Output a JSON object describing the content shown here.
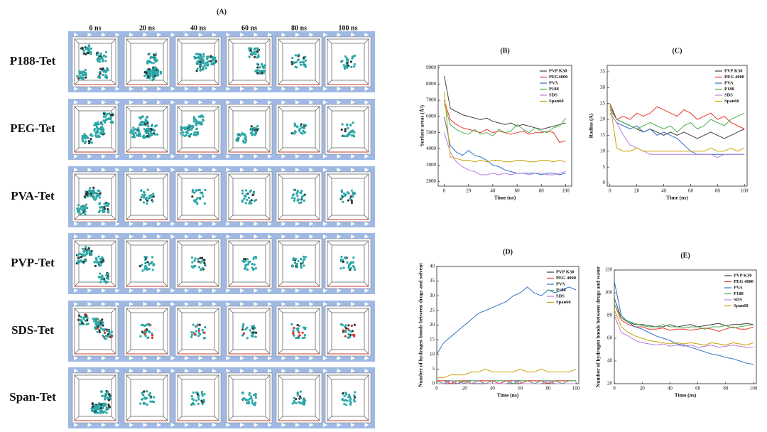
{
  "panel_a": {
    "title": "(A)",
    "columns": [
      "0 ns",
      "20 ns",
      "40 ns",
      "60 ns",
      "80 ns",
      "100 ns"
    ],
    "rows": [
      "P188-Tet",
      "PEG-Tet",
      "PVA-Tet",
      "PVP-Tet",
      "SDS-Tet",
      "Span-Tet"
    ]
  },
  "chart_data": [
    {
      "type": "line",
      "title": "(B)",
      "xlabel": "Time (ns)",
      "ylabel": "Surface areas (Å²)",
      "x": [
        0,
        5,
        10,
        15,
        20,
        25,
        30,
        35,
        40,
        45,
        50,
        55,
        60,
        65,
        70,
        75,
        80,
        85,
        90,
        95,
        100
      ],
      "xlim": [
        -5,
        105
      ],
      "ylim": [
        1700,
        9150
      ],
      "xticks": [
        0,
        20,
        40,
        60,
        80,
        100
      ],
      "yticks": [
        2000,
        3000,
        4000,
        5000,
        6000,
        7000,
        8000,
        9000
      ],
      "legend": "upper right",
      "series": [
        {
          "name": "PVP K30",
          "color": "#404040",
          "values": [
            8500,
            6500,
            6300,
            6100,
            6000,
            5900,
            5800,
            5900,
            5700,
            5600,
            5500,
            5600,
            5400,
            5500,
            5400,
            5300,
            5200,
            5300,
            5400,
            5500,
            5600
          ]
        },
        {
          "name": "PEG4000",
          "color": "#e8382b",
          "values": [
            7000,
            5800,
            5500,
            5300,
            5200,
            5100,
            5000,
            5200,
            5000,
            5100,
            5000,
            4900,
            5000,
            5100,
            4900,
            5000,
            5000,
            5100,
            5000,
            4400,
            4500
          ]
        },
        {
          "name": "PVA",
          "color": "#2f6fc9",
          "values": [
            6000,
            4200,
            3800,
            3600,
            3900,
            3600,
            3500,
            3300,
            3000,
            2900,
            2700,
            2600,
            2500,
            2500,
            2500,
            2500,
            2400,
            2500,
            2500,
            2400,
            2500
          ]
        },
        {
          "name": "P188",
          "color": "#4caf50",
          "values": [
            6800,
            5500,
            5200,
            5000,
            4900,
            5200,
            4900,
            5000,
            4800,
            5200,
            5000,
            5100,
            5500,
            5200,
            5000,
            5300,
            5100,
            5000,
            5300,
            5400,
            5900
          ]
        },
        {
          "name": "SDS",
          "color": "#b57ede",
          "values": [
            5000,
            3800,
            3200,
            2900,
            2700,
            2600,
            2400,
            2400,
            2500,
            2400,
            2500,
            2400,
            2500,
            2500,
            2400,
            2500,
            2500,
            2400,
            2400,
            2500,
            2600
          ]
        },
        {
          "name": "Span60",
          "color": "#c9a000",
          "values": [
            7500,
            3500,
            3400,
            3300,
            3300,
            3200,
            3300,
            3200,
            3300,
            3300,
            3200,
            3200,
            3300,
            3300,
            3200,
            3200,
            3300,
            3300,
            3200,
            3300,
            3200
          ]
        }
      ]
    },
    {
      "type": "line",
      "title": "(C)",
      "xlabel": "Time (ns)",
      "ylabel": "Radius (A)",
      "x": [
        0,
        5,
        10,
        15,
        20,
        25,
        30,
        35,
        40,
        45,
        50,
        55,
        60,
        65,
        70,
        75,
        80,
        85,
        90,
        95,
        100
      ],
      "xlim": [
        -2,
        102
      ],
      "ylim": [
        -1,
        37
      ],
      "xticks": [
        0,
        20,
        40,
        60,
        80,
        100
      ],
      "yticks": [
        0,
        5,
        10,
        15,
        20,
        25,
        30,
        35
      ],
      "legend": "upper right",
      "series": [
        {
          "name": "PVP K30",
          "color": "#404040",
          "values": [
            25,
            20,
            19,
            18,
            17,
            16,
            17,
            16,
            15,
            16,
            15,
            16,
            15,
            14,
            15,
            16,
            15,
            14,
            15,
            16,
            17
          ]
        },
        {
          "name": "PEG 4000",
          "color": "#e8382b",
          "values": [
            24,
            20,
            21,
            20,
            22,
            21,
            22,
            24,
            23,
            22,
            21,
            23,
            22,
            20,
            21,
            22,
            20,
            21,
            19,
            18,
            17
          ]
        },
        {
          "name": "PVA",
          "color": "#2f6fc9",
          "values": [
            22,
            19,
            18,
            17,
            18,
            16,
            17,
            15,
            16,
            15,
            14,
            12,
            10,
            9,
            9,
            9,
            9,
            9,
            9,
            9,
            9
          ]
        },
        {
          "name": "P188",
          "color": "#4caf50",
          "values": [
            23,
            20,
            19,
            18,
            17,
            18,
            19,
            18,
            17,
            18,
            16,
            18,
            19,
            17,
            18,
            20,
            19,
            18,
            20,
            21,
            22
          ]
        },
        {
          "name": "SDS",
          "color": "#b57ede",
          "values": [
            22,
            19,
            15,
            12,
            11,
            10,
            9,
            9,
            9,
            9,
            9,
            9,
            9,
            9,
            9,
            9,
            8,
            9,
            9,
            9,
            9
          ]
        },
        {
          "name": "Span60",
          "color": "#c9a000",
          "values": [
            25,
            11,
            10,
            10,
            11,
            10,
            10,
            10,
            10,
            10,
            10,
            10,
            10,
            10,
            10,
            11,
            10,
            10,
            11,
            10,
            11
          ]
        }
      ]
    },
    {
      "type": "line",
      "title": "(D)",
      "xlabel": "Time (ns)",
      "ylabel": "Number of hydrogen bonds between drugs and solvent",
      "x": [
        0,
        5,
        10,
        15,
        20,
        25,
        30,
        35,
        40,
        45,
        50,
        55,
        60,
        65,
        70,
        75,
        80,
        85,
        90,
        95,
        100
      ],
      "xlim": [
        0,
        102
      ],
      "ylim": [
        0,
        40
      ],
      "xticks": [
        0,
        20,
        40,
        60,
        80,
        100
      ],
      "yticks": [
        0,
        5,
        10,
        15,
        20,
        25,
        30,
        35,
        40
      ],
      "legend": "upper right",
      "series": [
        {
          "name": "PVP K30",
          "color": "#404040",
          "values": [
            1,
            1,
            1,
            0,
            1,
            1,
            1,
            1,
            1,
            1,
            1,
            1,
            1,
            1,
            1,
            1,
            1,
            1,
            1,
            1,
            1
          ]
        },
        {
          "name": "PEG 4000",
          "color": "#e8382b",
          "values": [
            1,
            1,
            0,
            1,
            1,
            0,
            1,
            1,
            1,
            0,
            1,
            1,
            0,
            1,
            1,
            1,
            0,
            1,
            1,
            1,
            1
          ]
        },
        {
          "name": "PVA",
          "color": "#2f6fc9",
          "values": [
            10,
            14,
            16,
            18,
            20,
            22,
            24,
            25,
            26,
            27,
            28,
            30,
            31,
            33,
            31,
            30,
            32,
            31,
            32,
            33,
            32
          ]
        },
        {
          "name": "P188",
          "color": "#4caf50",
          "values": [
            1,
            0,
            1,
            1,
            0,
            1,
            1,
            0,
            1,
            1,
            1,
            0,
            1,
            1,
            0,
            1,
            1,
            1,
            0,
            1,
            1
          ]
        },
        {
          "name": "SDS",
          "color": "#b57ede",
          "values": [
            0,
            0,
            1,
            0,
            0,
            0,
            1,
            0,
            0,
            0,
            0,
            1,
            0,
            0,
            0,
            0,
            1,
            0,
            0,
            0,
            0
          ]
        },
        {
          "name": "Span60",
          "color": "#c9a000",
          "values": [
            2,
            2,
            3,
            3,
            3,
            4,
            4,
            5,
            4,
            4,
            4,
            4,
            5,
            4,
            4,
            5,
            4,
            4,
            4,
            4,
            5
          ]
        }
      ]
    },
    {
      "type": "line",
      "title": "(E)",
      "xlabel": "Time (ns)",
      "ylabel": "Number of hydrogen bonds between drugs and water",
      "x": [
        0,
        5,
        10,
        15,
        20,
        25,
        30,
        35,
        40,
        45,
        50,
        55,
        60,
        65,
        70,
        75,
        80,
        85,
        90,
        95,
        100
      ],
      "xlim": [
        0,
        102
      ],
      "ylim": [
        20,
        120
      ],
      "xticks": [
        0,
        20,
        40,
        60,
        80,
        100
      ],
      "yticks": [
        20,
        40,
        60,
        80,
        100,
        120
      ],
      "legend": "upper right",
      "series": [
        {
          "name": "PVP K30",
          "color": "#404040",
          "values": [
            95,
            78,
            74,
            72,
            72,
            71,
            70,
            70,
            72,
            70,
            71,
            72,
            70,
            71,
            72,
            73,
            71,
            72,
            72,
            73,
            72
          ]
        },
        {
          "name": "PEG 4000",
          "color": "#e8382b",
          "values": [
            90,
            76,
            72,
            70,
            70,
            68,
            68,
            69,
            67,
            68,
            68,
            67,
            68,
            69,
            68,
            66,
            68,
            70,
            68,
            68,
            70
          ]
        },
        {
          "name": "PVA",
          "color": "#2f6fc9",
          "values": [
            110,
            80,
            74,
            70,
            68,
            65,
            62,
            60,
            58,
            55,
            54,
            52,
            50,
            48,
            46,
            45,
            43,
            42,
            40,
            38,
            37
          ]
        },
        {
          "name": "P188",
          "color": "#4caf50",
          "values": [
            90,
            78,
            75,
            73,
            71,
            70,
            70,
            72,
            70,
            70,
            69,
            70,
            70,
            68,
            70,
            70,
            71,
            69,
            70,
            71,
            72
          ]
        },
        {
          "name": "SDS",
          "color": "#b57ede",
          "values": [
            80,
            65,
            62,
            58,
            56,
            55,
            54,
            55,
            53,
            54,
            53,
            54,
            52,
            53,
            54,
            52,
            53,
            54,
            53,
            52,
            52
          ]
        },
        {
          "name": "Span60",
          "color": "#c9a000",
          "values": [
            85,
            70,
            65,
            62,
            60,
            58,
            57,
            56,
            55,
            56,
            55,
            56,
            55,
            54,
            56,
            55,
            54,
            56,
            55,
            54,
            56
          ]
        }
      ]
    }
  ]
}
